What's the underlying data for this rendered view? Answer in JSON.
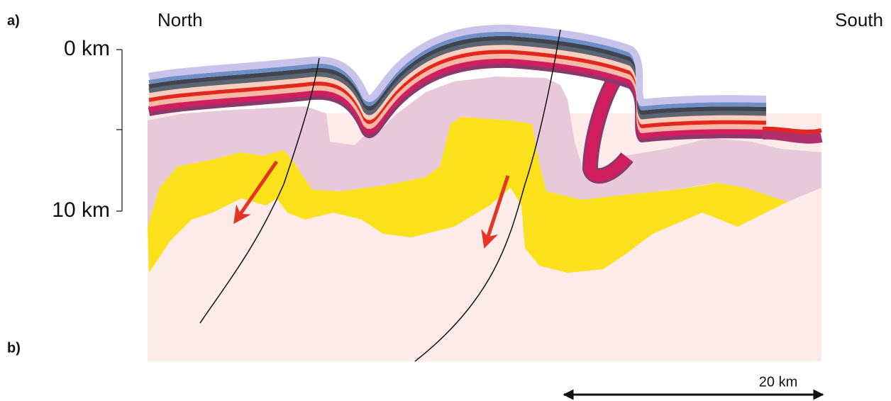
{
  "panel_labels": [
    "a)",
    "b)"
  ],
  "directions": {
    "left": "North",
    "right": "South"
  },
  "depth_axis": {
    "top": "0 km",
    "bottom": "10 km"
  },
  "scale_bar": "20 km"
}
